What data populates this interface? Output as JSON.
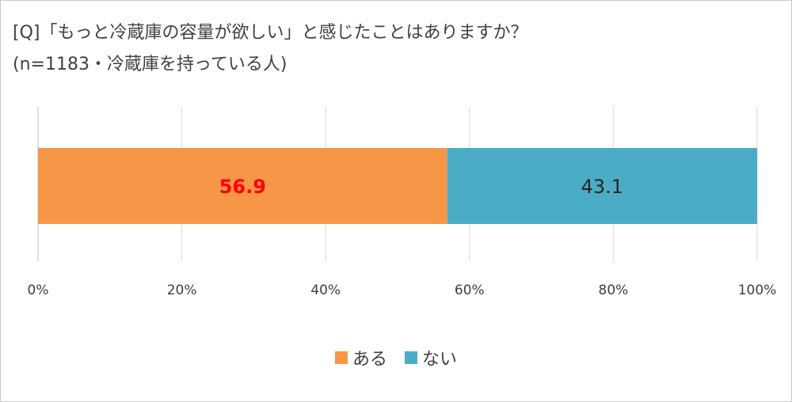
{
  "chart_data": {
    "type": "bar",
    "orientation": "horizontal",
    "stacked": true,
    "title_line1": "[Q]「もっと冷蔵庫の容量が欲しい」と感じたことはありますか？",
    "title_line2": "(n=1183・冷蔵庫を持っている人)",
    "xlim": [
      0,
      100
    ],
    "x_ticks": [
      "0%",
      "20%",
      "40%",
      "60%",
      "80%",
      "100%"
    ],
    "grid": true,
    "legend_position": "bottom",
    "series": [
      {
        "name": "ある",
        "value": 56.9,
        "label": "56.9",
        "color": "#F79646",
        "label_color": "#FF0000",
        "label_bold": true
      },
      {
        "name": "ない",
        "value": 43.1,
        "label": "43.1",
        "color": "#4BACC6",
        "label_color": "#262626",
        "label_bold": false
      }
    ]
  }
}
